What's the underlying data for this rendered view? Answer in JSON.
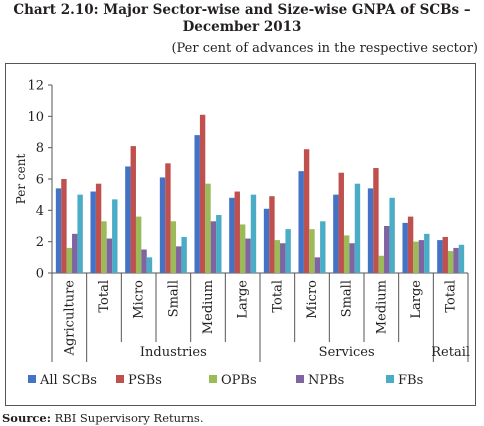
{
  "title_line1": "Chart 2.10: Major Sector-wise and Size-wise GNPA of SCBs –",
  "title_line2": "December 2013",
  "subtitle": "(Per cent of advances in the respective sector)",
  "source_label": "Source:",
  "source_text": "RBI Supervisory Returns.",
  "colors": {
    "All SCBs": "#4472c4",
    "PSBs": "#c0504d",
    "OPBs": "#9bbb59",
    "NPBs": "#8064a2",
    "FBs": "#4bacc6"
  },
  "chart_data": {
    "type": "bar",
    "ylabel": "Per cent",
    "ylim": [
      0,
      12
    ],
    "yticks": [
      0,
      2,
      4,
      6,
      8,
      10,
      12
    ],
    "grid": false,
    "legend_position": "bottom",
    "categories": [
      "Agriculture",
      "Total",
      "Micro",
      "Small",
      "Medium",
      "Large",
      "Total",
      "Micro",
      "Small",
      "Medium",
      "Large",
      "Total"
    ],
    "groups": [
      {
        "label": "Industries",
        "start": 1,
        "end": 5
      },
      {
        "label": "Services",
        "start": 6,
        "end": 10
      },
      {
        "label": "Retail",
        "start": 11,
        "end": 11
      }
    ],
    "series": [
      {
        "name": "All SCBs",
        "values": [
          5.4,
          5.2,
          6.8,
          6.1,
          8.8,
          4.8,
          4.1,
          6.5,
          5.0,
          5.4,
          3.2,
          2.1
        ]
      },
      {
        "name": "PSBs",
        "values": [
          6.0,
          5.7,
          8.1,
          7.0,
          10.1,
          5.2,
          4.9,
          7.9,
          6.4,
          6.7,
          3.6,
          2.3
        ]
      },
      {
        "name": "OPBs",
        "values": [
          1.6,
          3.3,
          3.6,
          3.3,
          5.7,
          3.1,
          2.1,
          2.8,
          2.4,
          1.1,
          2.0,
          1.4
        ]
      },
      {
        "name": "NPBs",
        "values": [
          2.5,
          2.2,
          1.5,
          1.7,
          3.3,
          2.2,
          1.9,
          1.0,
          1.9,
          3.0,
          2.1,
          1.6
        ]
      },
      {
        "name": "FBs",
        "values": [
          5.0,
          4.7,
          1.0,
          2.3,
          3.7,
          5.0,
          2.8,
          3.3,
          5.7,
          4.8,
          2.5,
          1.8
        ]
      }
    ]
  }
}
